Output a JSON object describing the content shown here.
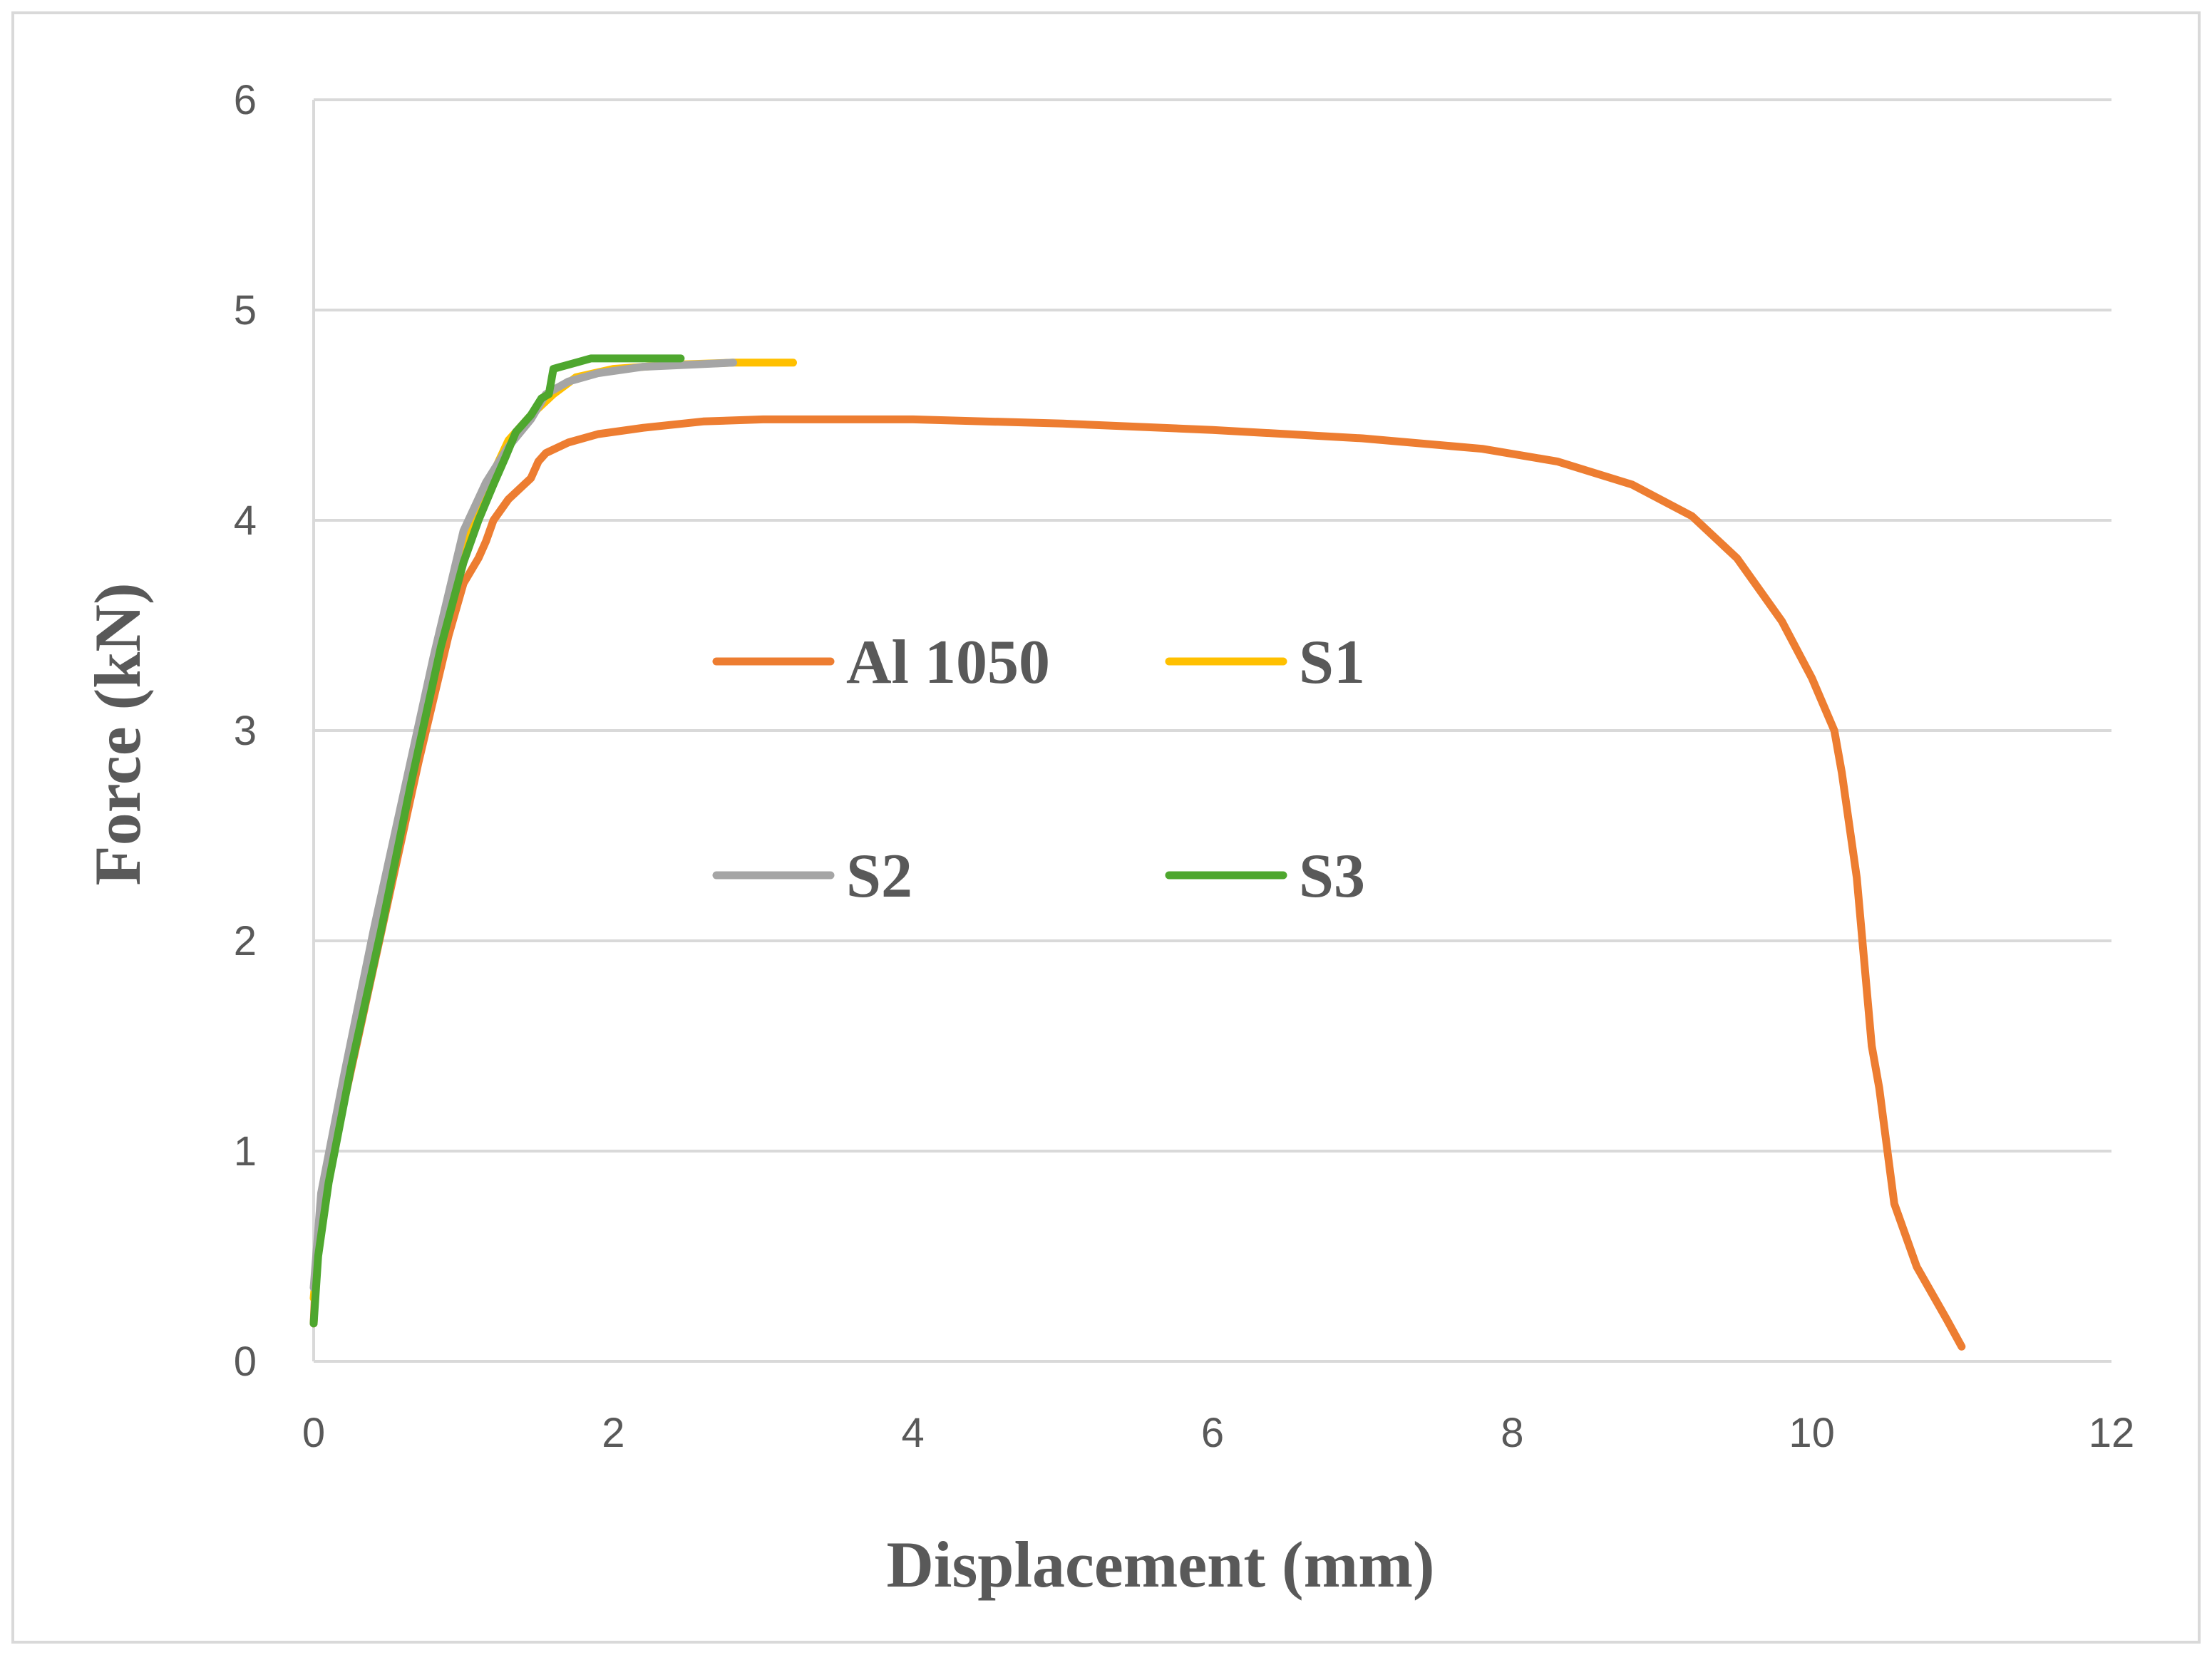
{
  "chart_data": {
    "type": "line",
    "title": "",
    "xlabel": "Displacement (mm)",
    "ylabel": "Force (kN)",
    "xlim": [
      0,
      12
    ],
    "ylim": [
      0,
      6
    ],
    "x_ticks": [
      0,
      2,
      4,
      6,
      8,
      10,
      12
    ],
    "y_ticks": [
      0,
      1,
      2,
      3,
      4,
      5,
      6
    ],
    "x_tick_labels": [
      "0",
      "2",
      "4",
      "6",
      "8",
      "10",
      "12"
    ],
    "y_tick_labels": [
      "0",
      "1",
      "2",
      "3",
      "4",
      "5",
      "6"
    ],
    "grid": "horizontal",
    "legend_position": "center-left",
    "series": [
      {
        "name": "Al 1050",
        "color": "#ED7D31",
        "x": [
          0.0,
          0.02,
          0.1,
          0.3,
          0.5,
          0.7,
          0.9,
          1.0,
          1.1,
          1.15,
          1.2,
          1.3,
          1.45,
          1.5,
          1.55,
          1.7,
          1.9,
          2.2,
          2.6,
          3.0,
          3.5,
          4.0,
          5.0,
          6.0,
          7.0,
          7.8,
          8.3,
          8.8,
          9.2,
          9.5,
          9.8,
          10.0,
          10.15,
          10.2,
          10.3,
          10.4,
          10.45,
          10.55,
          10.7,
          10.9,
          11.0
        ],
        "y": [
          0.18,
          0.5,
          0.9,
          1.55,
          2.2,
          2.85,
          3.45,
          3.7,
          3.82,
          3.9,
          4.0,
          4.1,
          4.2,
          4.28,
          4.32,
          4.37,
          4.41,
          4.44,
          4.47,
          4.48,
          4.48,
          4.48,
          4.46,
          4.43,
          4.39,
          4.34,
          4.28,
          4.17,
          4.02,
          3.82,
          3.52,
          3.25,
          3.0,
          2.8,
          2.3,
          1.5,
          1.3,
          0.75,
          0.45,
          0.2,
          0.07
        ]
      },
      {
        "name": "S1",
        "color": "#FFC000",
        "x": [
          0.0,
          0.05,
          0.2,
          0.4,
          0.6,
          0.8,
          1.0,
          1.15,
          1.3,
          1.45,
          1.6,
          1.75,
          2.0,
          2.4,
          2.8,
          3.2
        ],
        "y": [
          0.3,
          0.7,
          1.25,
          1.95,
          2.6,
          3.25,
          3.85,
          4.15,
          4.38,
          4.5,
          4.6,
          4.68,
          4.72,
          4.74,
          4.75,
          4.75
        ]
      },
      {
        "name": "S2",
        "color": "#A5A5A5",
        "x": [
          0.0,
          0.05,
          0.2,
          0.4,
          0.6,
          0.8,
          1.0,
          1.15,
          1.3,
          1.45,
          1.55,
          1.7,
          1.9,
          2.2,
          2.5,
          2.8
        ],
        "y": [
          0.35,
          0.8,
          1.35,
          2.05,
          2.7,
          3.35,
          3.95,
          4.18,
          4.35,
          4.48,
          4.6,
          4.66,
          4.7,
          4.73,
          4.74,
          4.75
        ]
      },
      {
        "name": "S3",
        "color": "#4EA72E",
        "x": [
          0.0,
          0.03,
          0.1,
          0.25,
          0.45,
          0.65,
          0.85,
          1.0,
          1.1,
          1.2,
          1.28,
          1.35,
          1.45,
          1.52,
          1.57,
          1.6,
          1.65,
          1.75,
          1.85,
          2.1,
          2.45
        ],
        "y": [
          0.18,
          0.5,
          0.85,
          1.4,
          2.05,
          2.75,
          3.4,
          3.8,
          4.0,
          4.17,
          4.3,
          4.42,
          4.5,
          4.58,
          4.6,
          4.72,
          4.73,
          4.75,
          4.77,
          4.77,
          4.77
        ]
      }
    ]
  }
}
